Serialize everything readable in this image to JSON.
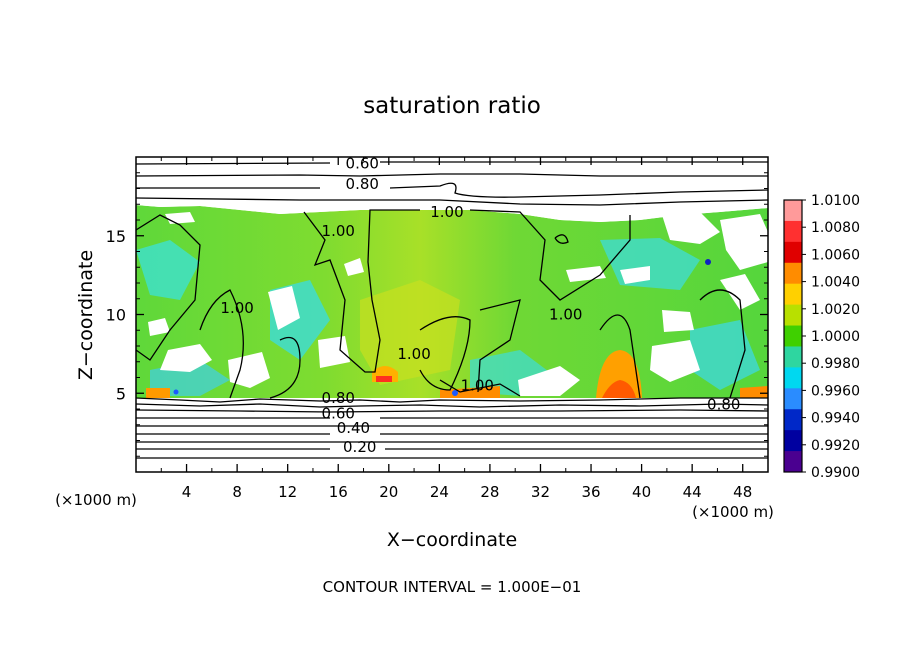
{
  "chart_data": {
    "type": "heatmap",
    "title": "saturation ratio",
    "xlabel": "X−coordinate",
    "ylabel": "Z−coordinate",
    "x_unit": "(×1000 m)",
    "y_unit": "(×1000 m)",
    "xlim": [
      0,
      50
    ],
    "ylim": [
      0,
      20
    ],
    "x_ticks": [
      "4",
      "8",
      "12",
      "16",
      "20",
      "24",
      "28",
      "32",
      "36",
      "40",
      "44",
      "48"
    ],
    "y_ticks": [
      "5",
      "10",
      "15"
    ],
    "footer": "CONTOUR INTERVAL = 1.000E−01",
    "colorbar": {
      "labels": [
        "1.0100",
        "1.0080",
        "1.0060",
        "1.0040",
        "1.0020",
        "1.0000",
        "0.9980",
        "0.9960",
        "0.9940",
        "0.9920",
        "0.9900"
      ],
      "colors": [
        "#ff9a9a",
        "#ff3030",
        "#e00000",
        "#ff8c00",
        "#ffd000",
        "#b8e000",
        "#3fd000",
        "#2ed6a0",
        "#00d8f0",
        "#2a8cff",
        "#0028c8",
        "#0000a0",
        "#4a0090"
      ]
    },
    "contour_labels": [
      {
        "text": "0.60",
        "x": 17.9,
        "z": 19.6
      },
      {
        "text": "0.80",
        "x": 17.9,
        "z": 18.3
      },
      {
        "text": "1.00",
        "x": 24.6,
        "z": 16.5
      },
      {
        "text": "1.00",
        "x": 16.0,
        "z": 15.3
      },
      {
        "text": "1.00",
        "x": 8.0,
        "z": 10.4
      },
      {
        "text": "1.00",
        "x": 22.0,
        "z": 7.5
      },
      {
        "text": "1.00",
        "x": 27.0,
        "z": 5.5
      },
      {
        "text": "1.00",
        "x": 34.0,
        "z": 10.0
      },
      {
        "text": "0.80",
        "x": 16.0,
        "z": 4.7
      },
      {
        "text": "0.80",
        "x": 46.5,
        "z": 4.3
      },
      {
        "text": "0.60",
        "x": 16.0,
        "z": 3.7
      },
      {
        "text": "0.40",
        "x": 17.2,
        "z": 2.8
      },
      {
        "text": "0.20",
        "x": 17.7,
        "z": 1.6
      }
    ]
  }
}
